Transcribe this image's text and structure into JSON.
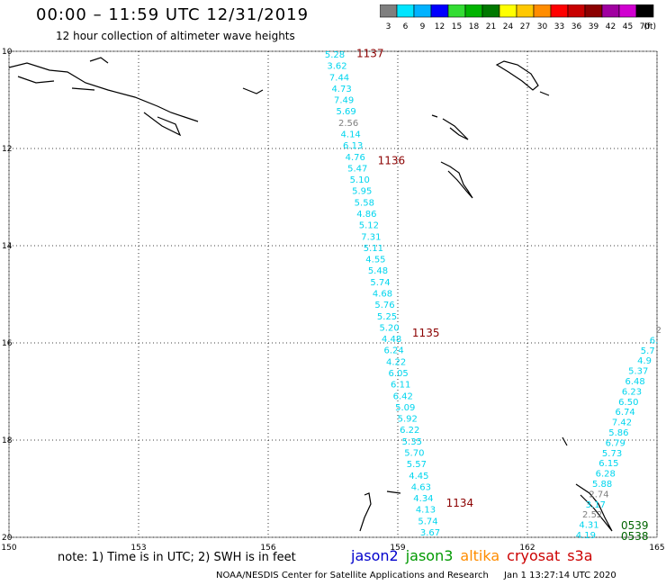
{
  "header": {
    "title": "00:00 – 11:59 UTC 12/31/2019",
    "subtitle": "12 hour collection of altimeter wave heights"
  },
  "colorbar": {
    "ticks": [
      "3",
      "6",
      "9",
      "12",
      "15",
      "18",
      "21",
      "24",
      "27",
      "30",
      "33",
      "36",
      "39",
      "42",
      "45",
      "70"
    ],
    "unit": "(ft)",
    "colors": [
      "#7f7f7f",
      "#00e5ff",
      "#00b2ff",
      "#0000ff",
      "#33dd33",
      "#00b400",
      "#007800",
      "#ffff00",
      "#ffc800",
      "#ff8c00",
      "#ff0000",
      "#c80000",
      "#8b0000",
      "#a000a0",
      "#d000d0",
      "#000000"
    ]
  },
  "axes": {
    "x_ticks": [
      "150",
      "153",
      "156",
      "159",
      "162",
      "165"
    ],
    "y_ticks": [
      "10",
      "12",
      "14",
      "16",
      "18",
      "20"
    ],
    "x_range": [
      150,
      165
    ],
    "y_range": [
      -10,
      -20
    ]
  },
  "tracks": {
    "jason3": {
      "labels": [
        "1137",
        "1136",
        "1135",
        "1134"
      ],
      "label_lat": [
        -10.05,
        -12.25,
        -15.8,
        -19.3
      ],
      "values": [
        "5.28",
        "3.62",
        "7.44",
        "4.73",
        "7.49",
        "5.69",
        "2.56",
        "4.14",
        "6.13",
        "4.76",
        "5.47",
        "5.10",
        "5.95",
        "5.58",
        "4.86",
        "5.12",
        "7.31",
        "5.11",
        "4.55",
        "5.48",
        "5.74",
        "4.68",
        "5.76",
        "5.25",
        "5.20",
        "4.48",
        "6.24",
        "4.22",
        "6.05",
        "6.11",
        "6.42",
        "5.09",
        "5.92",
        "6.22",
        "5.35",
        "5.70",
        "5.57",
        "4.45",
        "4.63",
        "4.34",
        "4.13",
        "5.74",
        "3.67"
      ]
    },
    "cryosat": {
      "values": [
        "2",
        "6.",
        "5.7",
        "4.9",
        "5.37",
        "6.48",
        "6.23",
        "6.50",
        "6.74",
        "7.42",
        "5.86",
        "6.79",
        "5.73",
        "6.15",
        "6.28",
        "5.88",
        "2.74",
        "3.17",
        "2.52",
        "4.31",
        "4.19"
      ],
      "labels": [
        "0539",
        "0538"
      ]
    }
  },
  "note": "note:  1) Time is in UTC;  2) SWH is in feet",
  "legend": [
    {
      "name": "jason2",
      "color": "#0000cc"
    },
    {
      "name": "jason3",
      "color": "#009900"
    },
    {
      "name": "altika",
      "color": "#ff8c00"
    },
    {
      "name": "cryosat",
      "color": "#cc0000"
    },
    {
      "name": "s3a",
      "color": "#cc0000"
    }
  ],
  "footer": {
    "center": "NOAA/NESDIS Center for Satellite Applications and Research",
    "timestamp": "Jan  1 13:27:14 UTC 2020"
  }
}
